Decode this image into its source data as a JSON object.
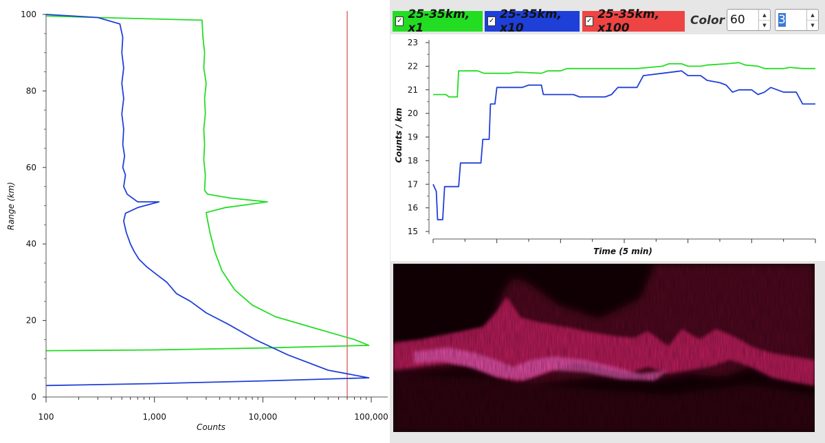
{
  "legend": {
    "items": [
      {
        "label": "25-35km, x1",
        "color": "#22dd22",
        "checked": true
      },
      {
        "label": "25-35km, x10",
        "color": "#1e3fd8",
        "checked": true
      },
      {
        "label": "25-35km, x100",
        "color": "#ee4444",
        "checked": true
      }
    ],
    "check_mark": "✓"
  },
  "controls": {
    "color_label": "Color",
    "color_value": "60",
    "second_value": "3",
    "up_glyph": "▲",
    "down_glyph": "▼"
  },
  "chart_data": [
    {
      "type": "line",
      "xscale": "log",
      "xlabel": "Counts",
      "ylabel": "Range (km)",
      "xlim": [
        100,
        100000
      ],
      "ylim": [
        0,
        100
      ],
      "x_ticks": [
        100,
        1000,
        10000,
        100000
      ],
      "x_tick_labels": [
        "100",
        "1,000",
        "10,000",
        "100,000"
      ],
      "y_ticks": [
        0,
        20,
        40,
        60,
        80,
        100
      ],
      "y_tick_labels": [
        "0",
        "20",
        "40",
        "60",
        "80",
        "100"
      ],
      "vline": {
        "x": 60000,
        "color": "#cc2222"
      },
      "series": [
        {
          "color": "#22dd22",
          "points": [
            [
              100,
              12.1
            ],
            [
              1000,
              12.3
            ],
            [
              10000,
              12.8
            ],
            [
              95000,
              13.5
            ],
            [
              70000,
              15
            ],
            [
              30000,
              18
            ],
            [
              13000,
              21
            ],
            [
              8000,
              24
            ],
            [
              5500,
              28
            ],
            [
              4200,
              33
            ],
            [
              3600,
              38
            ],
            [
              3250,
              43
            ],
            [
              3100,
              46
            ],
            [
              3000,
              48.2
            ],
            [
              4500,
              49.5
            ],
            [
              11000,
              51
            ],
            [
              5000,
              52
            ],
            [
              3100,
              53
            ],
            [
              2900,
              54
            ],
            [
              2950,
              58
            ],
            [
              2850,
              62
            ],
            [
              2900,
              66
            ],
            [
              2850,
              70
            ],
            [
              2950,
              74
            ],
            [
              2900,
              78
            ],
            [
              3000,
              82
            ],
            [
              2850,
              86
            ],
            [
              2900,
              90
            ],
            [
              2800,
              94
            ],
            [
              2750,
              98.5
            ],
            [
              300,
              99.2
            ],
            [
              100,
              99.6
            ]
          ]
        },
        {
          "color": "#1e3fd8",
          "points": [
            [
              100,
              3
            ],
            [
              1000,
              3.5
            ],
            [
              10000,
              4.2
            ],
            [
              95000,
              5
            ],
            [
              40000,
              7
            ],
            [
              17000,
              11
            ],
            [
              8500,
              15
            ],
            [
              4800,
              19
            ],
            [
              3000,
              22
            ],
            [
              2150,
              25
            ],
            [
              1600,
              27
            ],
            [
              1300,
              30
            ],
            [
              1050,
              32
            ],
            [
              850,
              34
            ],
            [
              720,
              36
            ],
            [
              650,
              38
            ],
            [
              600,
              40
            ],
            [
              550,
              43
            ],
            [
              520,
              46
            ],
            [
              540,
              48
            ],
            [
              700,
              49.5
            ],
            [
              1100,
              51
            ],
            [
              700,
              51
            ],
            [
              560,
              53
            ],
            [
              520,
              55
            ],
            [
              540,
              58
            ],
            [
              510,
              60
            ],
            [
              530,
              63
            ],
            [
              510,
              66
            ],
            [
              520,
              70
            ],
            [
              500,
              74
            ],
            [
              520,
              78
            ],
            [
              500,
              82
            ],
            [
              520,
              86
            ],
            [
              500,
              90
            ],
            [
              510,
              94
            ],
            [
              480,
              97.5
            ],
            [
              300,
              99.2
            ],
            [
              100,
              100
            ]
          ]
        }
      ]
    },
    {
      "type": "line",
      "xlabel": "Time (5 min)",
      "ylabel": "Counts / km",
      "ylim": [
        15,
        23
      ],
      "xlim": [
        0,
        60
      ],
      "y_ticks": [
        15,
        16,
        17,
        18,
        19,
        20,
        21,
        22,
        23
      ],
      "y_tick_labels": [
        "15",
        "16",
        "17",
        "18",
        "19",
        "20",
        "21",
        "22",
        "23"
      ],
      "x_ticks": [
        0,
        5,
        10,
        15,
        20,
        25,
        30,
        35,
        40,
        45,
        50,
        55,
        60
      ],
      "series": [
        {
          "color": "#22dd22",
          "points": [
            [
              0,
              20.8
            ],
            [
              2,
              20.8
            ],
            [
              2.5,
              20.7
            ],
            [
              3.8,
              20.7
            ],
            [
              4,
              21.8
            ],
            [
              7,
              21.8
            ],
            [
              8,
              21.7
            ],
            [
              12,
              21.7
            ],
            [
              13,
              21.75
            ],
            [
              17,
              21.7
            ],
            [
              18,
              21.8
            ],
            [
              20,
              21.8
            ],
            [
              21,
              21.9
            ],
            [
              26,
              21.9
            ],
            [
              28,
              21.9
            ],
            [
              32,
              21.9
            ],
            [
              34,
              21.95
            ],
            [
              36,
              22
            ],
            [
              37,
              22.1
            ],
            [
              39,
              22.1
            ],
            [
              40,
              22
            ],
            [
              42,
              22
            ],
            [
              43,
              22.05
            ],
            [
              46,
              22.1
            ],
            [
              48,
              22.15
            ],
            [
              49,
              22.05
            ],
            [
              51,
              22
            ],
            [
              52,
              21.9
            ],
            [
              55,
              21.9
            ],
            [
              56,
              21.95
            ],
            [
              58,
              21.9
            ],
            [
              60,
              21.9
            ]
          ]
        },
        {
          "color": "#1e3fd8",
          "points": [
            [
              0,
              17
            ],
            [
              0.5,
              16.7
            ],
            [
              0.7,
              15.5
            ],
            [
              1.5,
              15.5
            ],
            [
              1.8,
              16.9
            ],
            [
              4,
              16.9
            ],
            [
              4.3,
              17.9
            ],
            [
              7.5,
              17.9
            ],
            [
              7.8,
              18.9
            ],
            [
              8.8,
              18.9
            ],
            [
              9,
              20.4
            ],
            [
              9.7,
              20.4
            ],
            [
              10,
              21.1
            ],
            [
              14,
              21.1
            ],
            [
              15,
              21.2
            ],
            [
              17,
              21.2
            ],
            [
              17.3,
              20.8
            ],
            [
              21,
              20.8
            ],
            [
              22,
              20.8
            ],
            [
              23,
              20.7
            ],
            [
              27,
              20.7
            ],
            [
              28,
              20.8
            ],
            [
              29,
              21.1
            ],
            [
              32,
              21.1
            ],
            [
              33,
              21.6
            ],
            [
              36,
              21.7
            ],
            [
              39,
              21.8
            ],
            [
              40,
              21.6
            ],
            [
              42,
              21.6
            ],
            [
              43,
              21.4
            ],
            [
              45,
              21.3
            ],
            [
              46,
              21.2
            ],
            [
              47,
              20.9
            ],
            [
              48,
              21
            ],
            [
              50,
              21
            ],
            [
              51,
              20.8
            ],
            [
              52,
              20.9
            ],
            [
              53,
              21.1
            ],
            [
              55,
              20.9
            ],
            [
              57,
              20.9
            ],
            [
              58,
              20.4
            ],
            [
              60,
              20.4
            ]
          ]
        }
      ]
    },
    {
      "type": "heatmap",
      "colormap": [
        "#140006",
        "#6a0a2c",
        "#d8236a",
        "#ff66cc"
      ]
    }
  ]
}
